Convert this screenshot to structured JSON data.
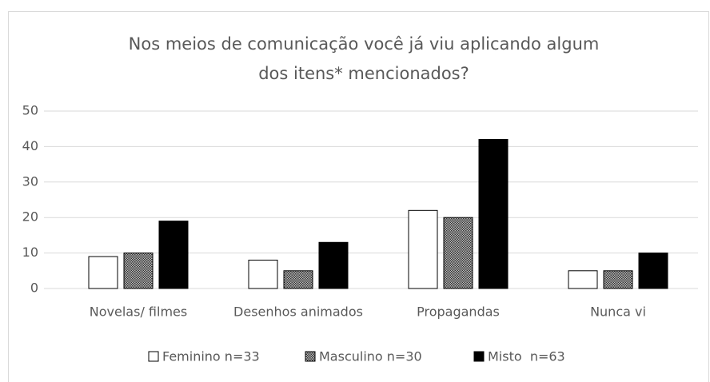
{
  "chart_data": {
    "type": "bar",
    "title": [
      "Nos meios de comunicação você já viu aplicando algum",
      "dos itens* mencionados?"
    ],
    "categories": [
      "Novelas/ filmes",
      "Desenhos animados",
      "Propagandas",
      "Nunca vi"
    ],
    "series": [
      {
        "name": "Feminino n=33",
        "color": "#ffffff",
        "values": [
          9,
          8,
          22,
          5
        ]
      },
      {
        "name": "Masculino n=30",
        "color": "#7f7f7f",
        "hatch": true,
        "values": [
          10,
          5,
          20,
          5
        ]
      },
      {
        "name": "Misto  n=63",
        "color": "#000000",
        "values": [
          19,
          13,
          42,
          10
        ]
      }
    ],
    "ylim": [
      0,
      50
    ],
    "yticks": [
      0,
      10,
      20,
      30,
      40,
      50
    ],
    "grid": true,
    "legend": "bottom"
  }
}
